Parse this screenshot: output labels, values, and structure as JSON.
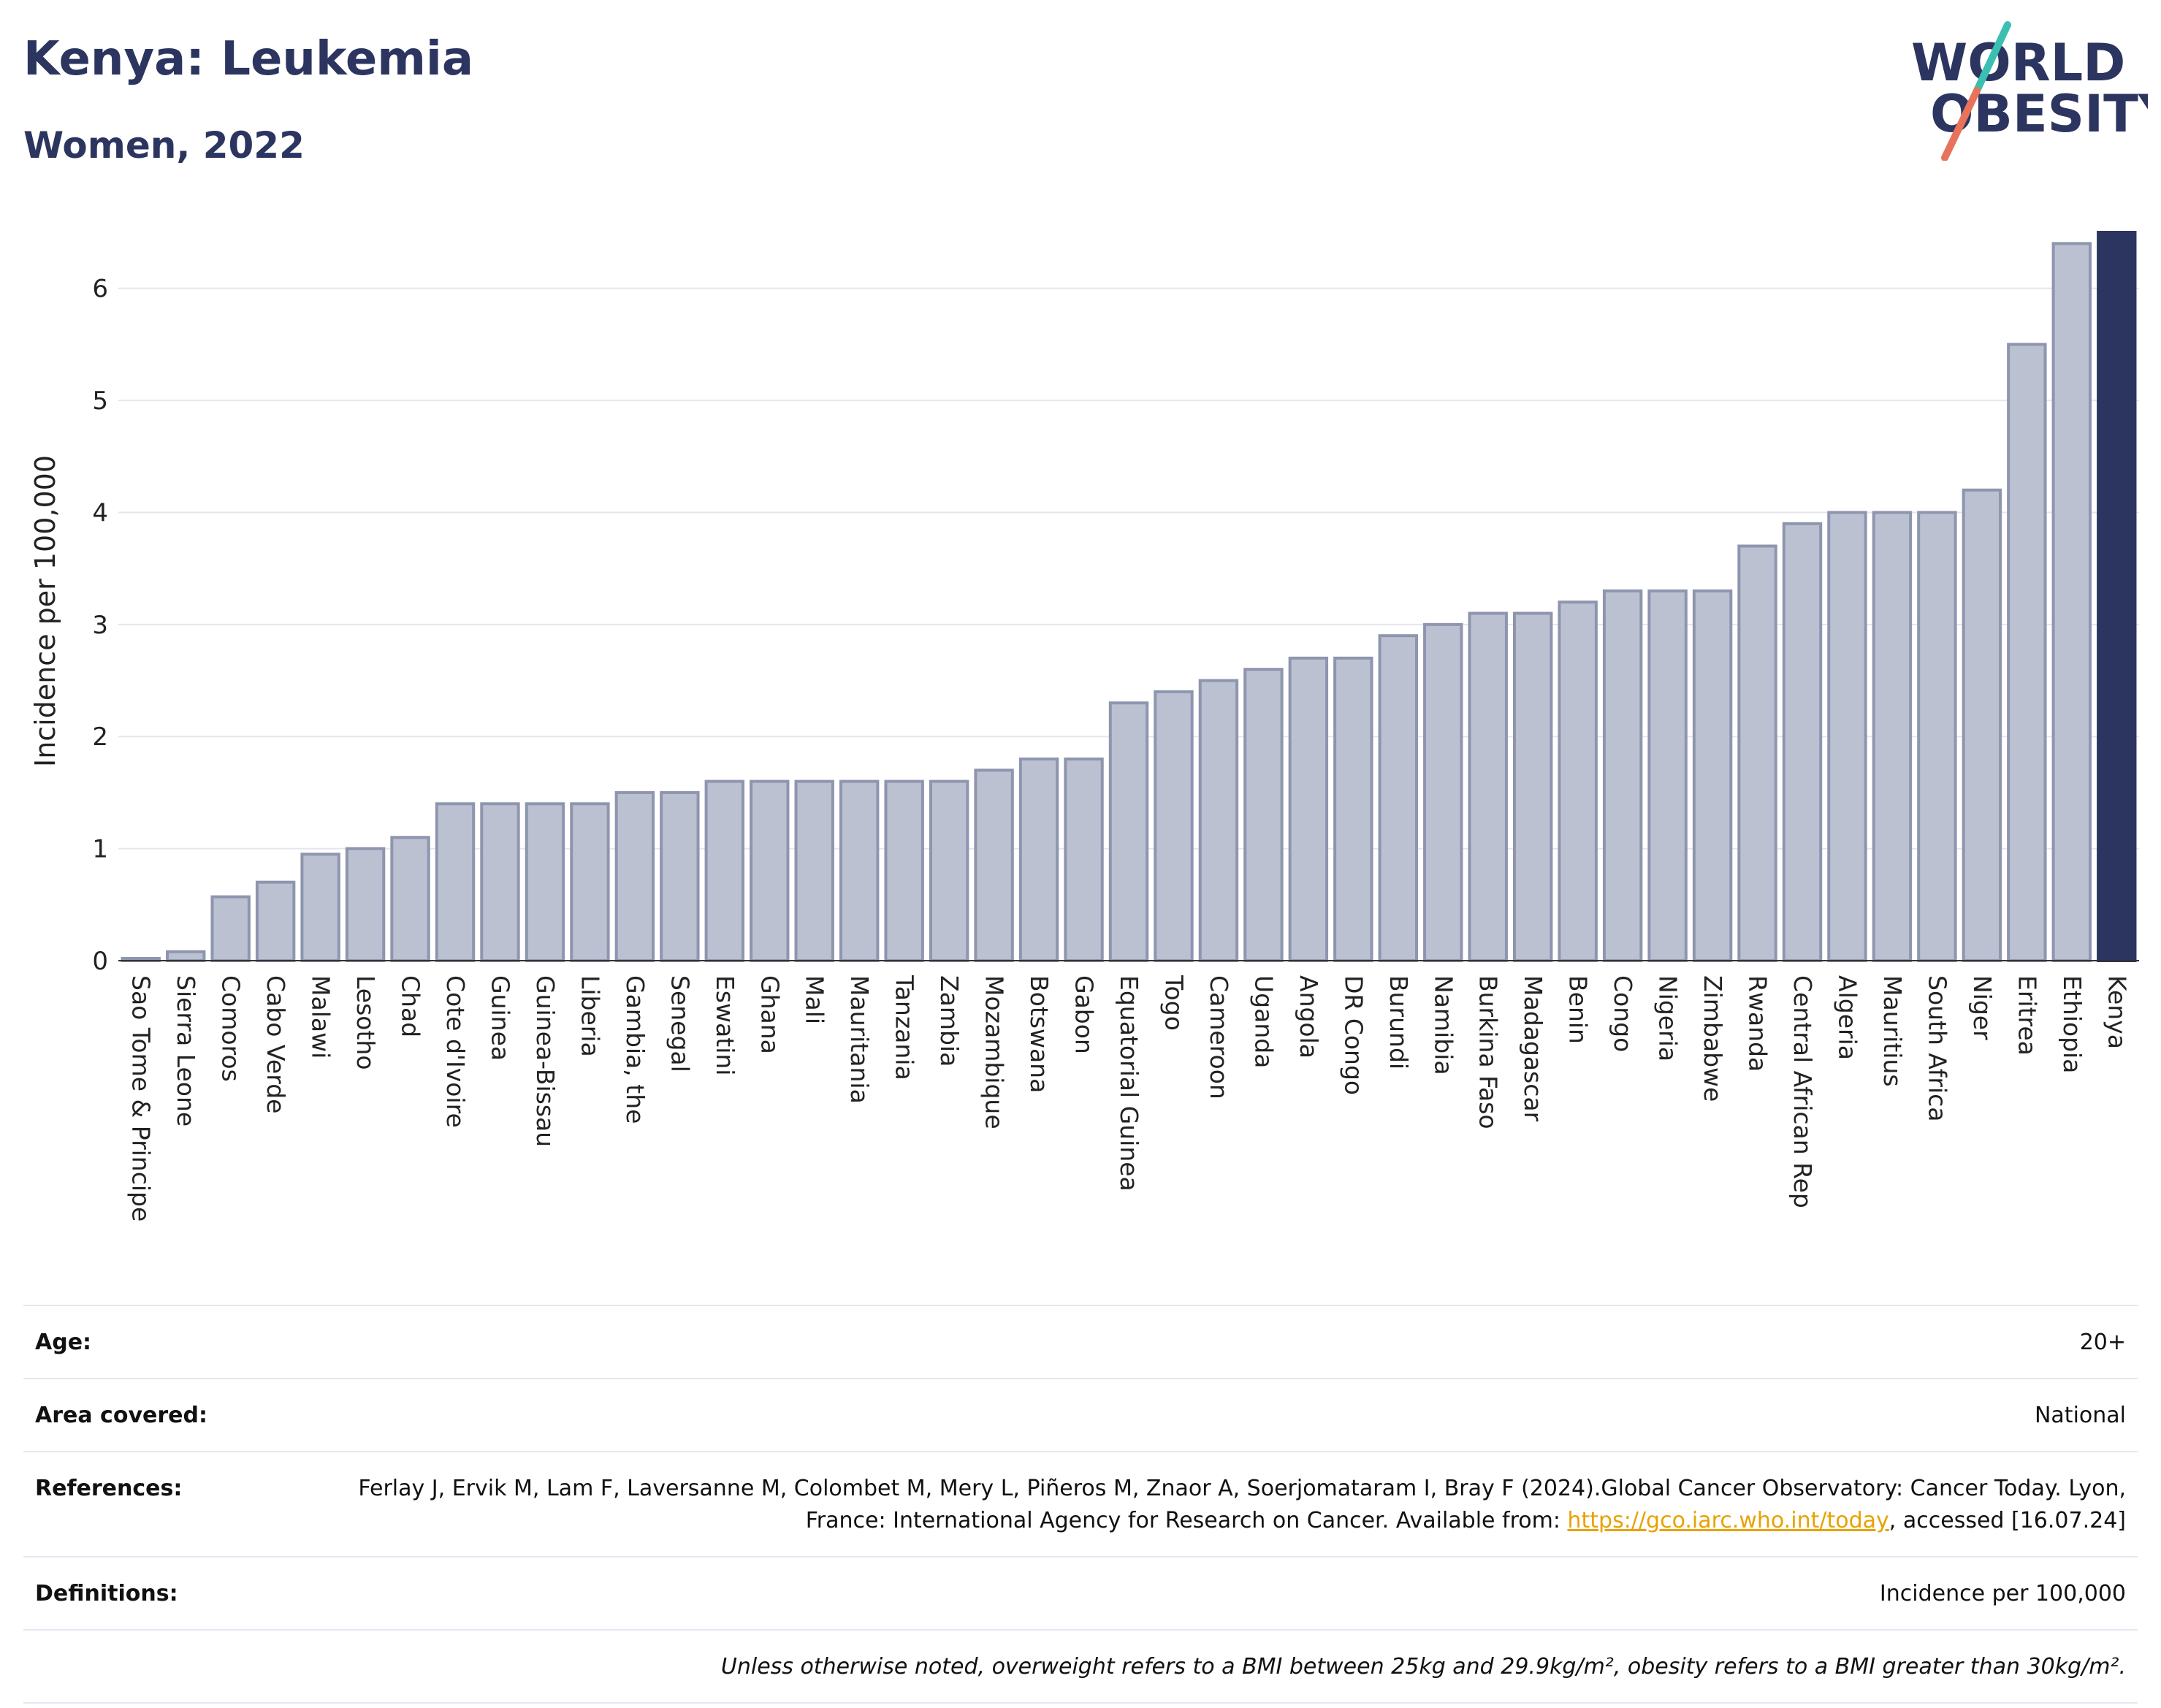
{
  "title": "Kenya: Leukemia",
  "subtitle": "Women, 2022",
  "logo": {
    "line1": "WORLD",
    "line2": "OBESITY",
    "accent_teal": "#3bbfb0",
    "accent_coral": "#e8735a"
  },
  "colors": {
    "bar": "#bcc1d1",
    "bar_edge": "#8e95ae",
    "highlight": "#2c3560",
    "grid": "#e4e6ee"
  },
  "chart_data": {
    "type": "bar",
    "ylabel": "Incidence per 100,000",
    "xlabel": "",
    "ylim": [
      0,
      6.5
    ],
    "yticks": [
      0,
      1,
      2,
      3,
      4,
      5,
      6
    ],
    "grid": true,
    "highlight": "Kenya",
    "categories": [
      "Sao Tome & Principe",
      "Sierra Leone",
      "Comoros",
      "Cabo Verde",
      "Malawi",
      "Lesotho",
      "Chad",
      "Cote d'Ivoire",
      "Guinea",
      "Guinea-Bissau",
      "Liberia",
      "Gambia, the",
      "Senegal",
      "Eswatini",
      "Ghana",
      "Mali",
      "Mauritania",
      "Tanzania",
      "Zambia",
      "Mozambique",
      "Botswana",
      "Gabon",
      "Equatorial Guinea",
      "Togo",
      "Cameroon",
      "Uganda",
      "Angola",
      "DR Congo",
      "Burundi",
      "Namibia",
      "Burkina Faso",
      "Madagascar",
      "Benin",
      "Congo",
      "Nigeria",
      "Zimbabwe",
      "Rwanda",
      "Central African Rep",
      "Algeria",
      "Mauritius",
      "South Africa",
      "Niger",
      "Eritrea",
      "Ethiopia",
      "Kenya"
    ],
    "values": [
      0.02,
      0.08,
      0.57,
      0.7,
      0.95,
      1.0,
      1.1,
      1.4,
      1.4,
      1.4,
      1.4,
      1.5,
      1.5,
      1.6,
      1.6,
      1.6,
      1.6,
      1.6,
      1.6,
      1.7,
      1.8,
      1.8,
      2.3,
      2.4,
      2.5,
      2.6,
      2.7,
      2.7,
      2.9,
      3.0,
      3.1,
      3.1,
      3.2,
      3.3,
      3.3,
      3.3,
      3.7,
      3.9,
      4.0,
      4.0,
      4.0,
      4.2,
      5.5,
      6.4,
      6.5
    ]
  },
  "meta": {
    "age_label": "Age:",
    "age_value": "20+",
    "area_label": "Area covered:",
    "area_value": "National",
    "references_label": "References:",
    "references_text": "Ferlay J, Ervik M, Lam F, Laversanne M, Colombet M, Mery L, Piñeros M, Znaor A, Soerjomataram I, Bray F (2024).Global Cancer Observatory: Cancer Today. Lyon, France: International Agency for Research on Cancer. Available from: ",
    "references_link": "https://gco.iarc.who.int/today",
    "references_tail": ", accessed [16.07.24]",
    "definitions_label": "Definitions:",
    "definitions_value": "Incidence per 100,000",
    "note": "Unless otherwise noted, overweight refers to a BMI between 25kg and 29.9kg/m², obesity refers to a BMI greater than 30kg/m²."
  }
}
